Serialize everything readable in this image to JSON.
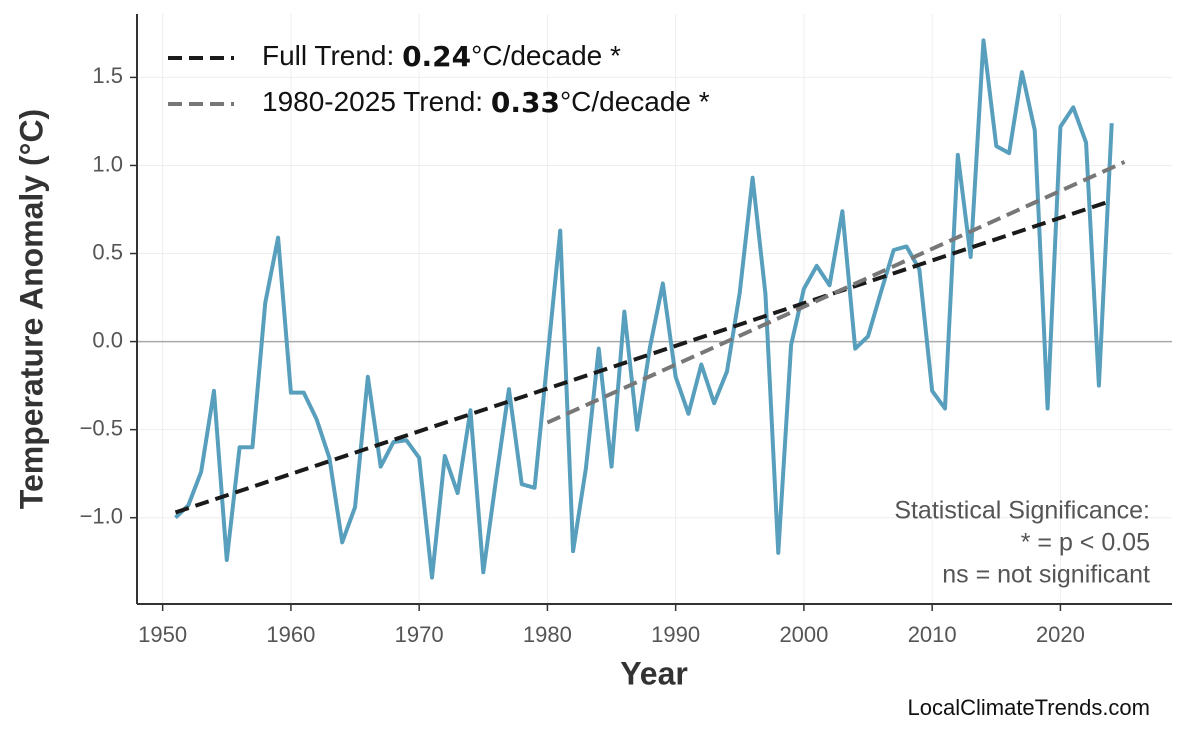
{
  "chart_data": {
    "type": "line",
    "xlabel": "Year",
    "ylabel": "Temperature Anomaly (°C)",
    "xlim": [
      1948,
      2028.7
    ],
    "ylim": [
      -1.49,
      1.86
    ],
    "xticks": [
      1950,
      1960,
      1970,
      1980,
      1990,
      2000,
      2010,
      2020
    ],
    "yticks": [
      {
        "value": -1,
        "label": "−1.0"
      },
      {
        "value": -0.5,
        "label": "−0.5"
      },
      {
        "value": 0,
        "label": "0.0"
      },
      0.5,
      {
        "value": 1,
        "label": "1.0"
      },
      1.5
    ],
    "grid": true,
    "hline": 0,
    "legend": "upper left",
    "series": [
      {
        "name": "Temperature Anomaly",
        "color": "#589fbd",
        "legend": false,
        "x": [
          1951,
          1952,
          1953,
          1954,
          1955,
          1956,
          1957,
          1958,
          1959,
          1960,
          1961,
          1962,
          1963,
          1964,
          1965,
          1966,
          1967,
          1968,
          1969,
          1970,
          1971,
          1972,
          1973,
          1974,
          1975,
          1976,
          1977,
          1978,
          1979,
          1980,
          1981,
          1982,
          1983,
          1984,
          1985,
          1986,
          1987,
          1988,
          1989,
          1990,
          1991,
          1992,
          1993,
          1994,
          1995,
          1996,
          1997,
          1998,
          1999,
          2000,
          2001,
          2002,
          2003,
          2004,
          2005,
          2006,
          2007,
          2008,
          2009,
          2010,
          2011,
          2012,
          2013,
          2014,
          2015,
          2016,
          2017,
          2018,
          2019,
          2020,
          2021,
          2022,
          2023,
          2024
        ],
        "values": [
          -1.0,
          -0.93,
          -0.74,
          -0.28,
          -1.24,
          -0.6,
          -0.6,
          0.22,
          0.59,
          -0.29,
          -0.29,
          -0.44,
          -0.66,
          -1.14,
          -0.94,
          -0.2,
          -0.71,
          -0.57,
          -0.56,
          -0.66,
          -1.34,
          -0.65,
          -0.86,
          -0.39,
          -1.31,
          -0.78,
          -0.27,
          -0.81,
          -0.83,
          -0.1,
          0.63,
          -1.19,
          -0.72,
          -0.04,
          -0.71,
          0.17,
          -0.5,
          -0.03,
          0.33,
          -0.2,
          -0.41,
          -0.13,
          -0.35,
          -0.17,
          0.28,
          0.93,
          0.27,
          -1.2,
          -0.02,
          0.3,
          0.43,
          0.32,
          0.74,
          -0.04,
          0.03,
          0.28,
          0.52,
          0.54,
          0.41,
          -0.28,
          -0.38,
          1.06,
          0.48,
          1.71,
          1.11,
          1.07,
          1.53,
          1.2,
          -0.38,
          1.22,
          1.33,
          1.13,
          -0.25,
          1.24
        ]
      },
      {
        "name": "Full Trend: ",
        "rate": 0.24,
        "unit_label": "°C/decade *",
        "color": "#1a1a1a",
        "dash": true,
        "x": [
          1951,
          2024
        ],
        "values": [
          -0.97,
          0.8
        ]
      },
      {
        "name": "1980-2025 Trend: ",
        "rate": 0.33,
        "unit_label": "°C/decade *",
        "color": "#777777",
        "dash": true,
        "x": [
          1980,
          2025
        ],
        "values": [
          -0.46,
          1.02
        ]
      }
    ],
    "annotation": [
      "Statistical Significance:",
      "* = p < 0.05",
      "ns = not significant"
    ],
    "source": "LocalClimateTrends.com"
  }
}
